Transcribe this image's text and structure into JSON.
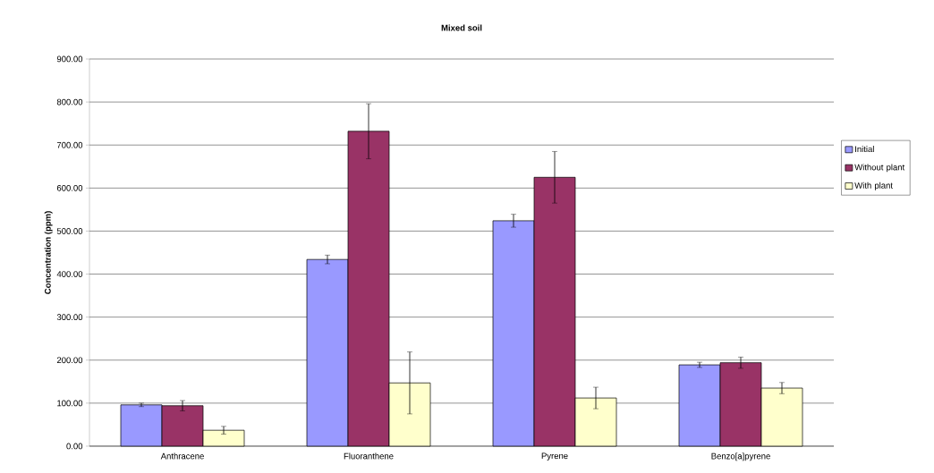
{
  "chart_data": {
    "type": "bar",
    "title": "Mixed soil",
    "ylabel": "Concentration (ppm)",
    "categories": [
      "Anthracene",
      "Fluoranthene",
      "Pyrene",
      "Benzo[a]pyrene"
    ],
    "series": [
      {
        "name": "Initial",
        "color": "#9999ff",
        "values": [
          96,
          434,
          524,
          189
        ],
        "errors": [
          4,
          10,
          15,
          6
        ]
      },
      {
        "name": "Without plant",
        "color": "#993366",
        "values": [
          94,
          732,
          625,
          194
        ],
        "errors": [
          12,
          64,
          60,
          13
        ]
      },
      {
        "name": "With plant",
        "color": "#ffffcc",
        "values": [
          37,
          147,
          112,
          135
        ],
        "errors": [
          9,
          72,
          25,
          13
        ]
      }
    ],
    "ylim": [
      0,
      900
    ],
    "yticks": [
      {
        "value": 0,
        "label": "0.00"
      },
      {
        "value": 100,
        "label": "100.00"
      },
      {
        "value": 200,
        "label": "200.00"
      },
      {
        "value": 300,
        "label": "300.00"
      },
      {
        "value": 400,
        "label": "400.00"
      },
      {
        "value": 500,
        "label": "500.00"
      },
      {
        "value": 600,
        "label": "600.00"
      },
      {
        "value": 700,
        "label": "700.00"
      },
      {
        "value": 800,
        "label": "800.00"
      },
      {
        "value": 900,
        "label": "900.00"
      }
    ],
    "grid": "y",
    "legend": "right"
  }
}
